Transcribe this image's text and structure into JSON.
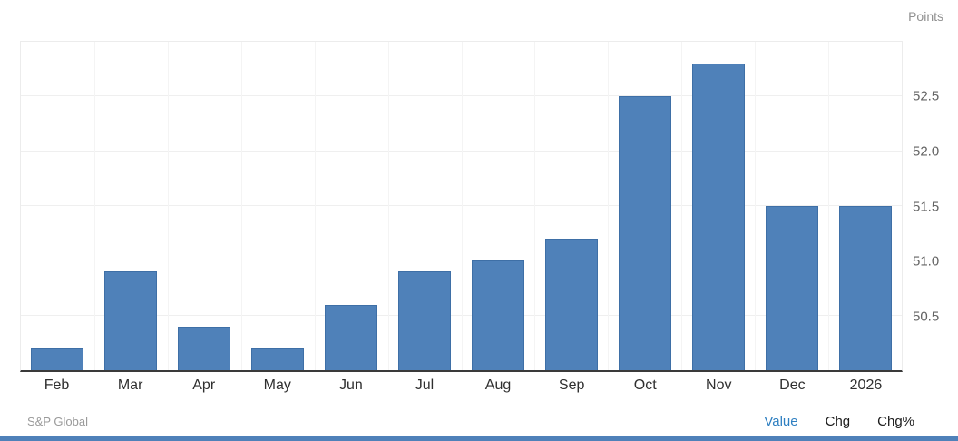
{
  "header": {
    "units_label": "Points"
  },
  "chart_data": {
    "type": "bar",
    "title": "",
    "xlabel": "",
    "ylabel": "Points",
    "categories": [
      "Feb",
      "Mar",
      "Apr",
      "May",
      "Jun",
      "Jul",
      "Aug",
      "Sep",
      "Oct",
      "Nov",
      "Dec",
      "2026"
    ],
    "values": [
      50.2,
      50.9,
      50.4,
      50.2,
      50.6,
      50.9,
      51.0,
      51.2,
      52.5,
      52.8,
      51.5,
      51.5
    ],
    "ylim": [
      50.0,
      53.0
    ],
    "yticks": [
      50.5,
      51.0,
      51.5,
      52.0,
      52.5
    ],
    "grid": true,
    "legend": "none"
  },
  "footer": {
    "source": "S&P Global",
    "tabs": [
      {
        "label": "Value",
        "active": true
      },
      {
        "label": "Chg",
        "active": false
      },
      {
        "label": "Chg%",
        "active": false
      }
    ]
  },
  "colors": {
    "bar": "#4f81b9",
    "bar_border": "#3e6fa6",
    "active_tab": "#2e7fc1",
    "inactive_tab": "#1c1c1c",
    "accent_bar": "#4f81b9"
  }
}
